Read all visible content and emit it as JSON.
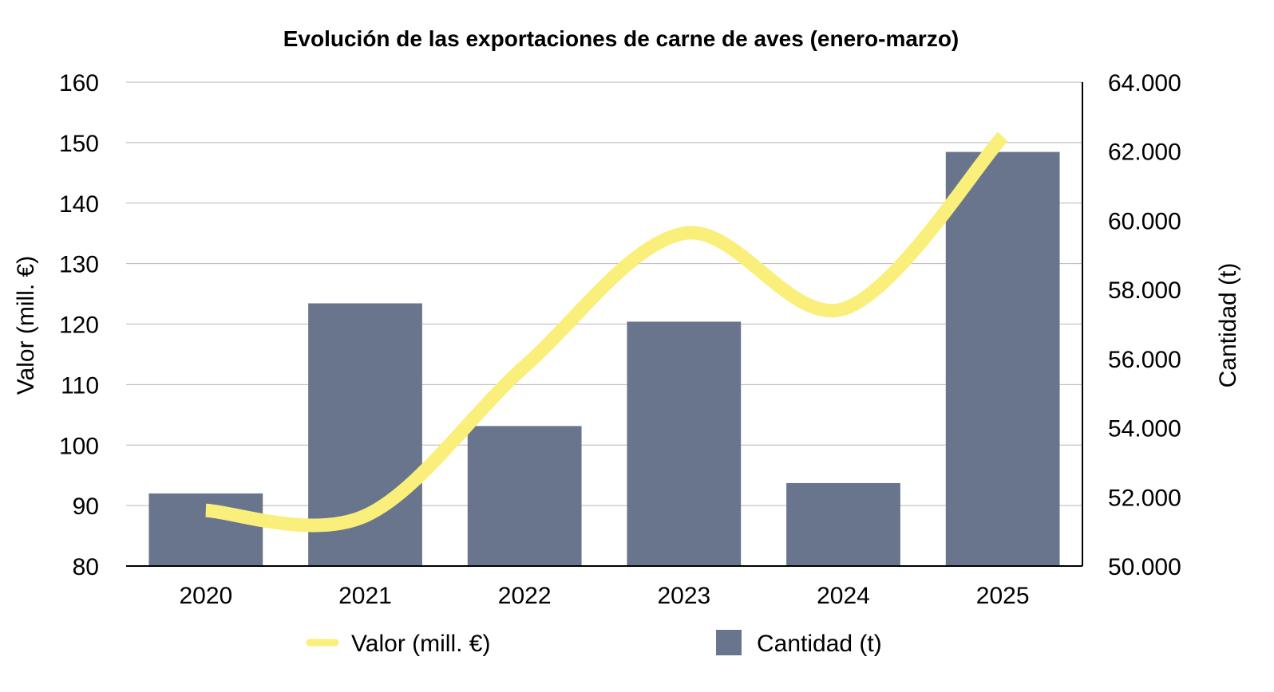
{
  "chart_data": {
    "type": "bar+line",
    "title": "Evolución de las exportaciones de carne de aves (enero-marzo)",
    "categories": [
      "2020",
      "2021",
      "2022",
      "2023",
      "2024",
      "2025"
    ],
    "series": [
      {
        "name": "Cantidad (t)",
        "type": "bar",
        "axis": "right",
        "color": "#68758c",
        "values": [
          52100,
          57600,
          54050,
          57070,
          52400,
          61980
        ]
      },
      {
        "name": "Valor (mill. €)",
        "type": "line",
        "axis": "left",
        "color": "#f9ef7a",
        "values": [
          89.2,
          88.3,
          113.0,
          135.0,
          122.5,
          151.0
        ]
      }
    ],
    "y_left": {
      "label": "Valor (mill. €)",
      "min": 80,
      "max": 160,
      "step": 10,
      "ticks": [
        "80",
        "90",
        "100",
        "110",
        "120",
        "130",
        "140",
        "150",
        "160"
      ]
    },
    "y_right": {
      "label": "Cantidad (t)",
      "min": 50000,
      "max": 64000,
      "step": 2000,
      "ticks": [
        "50.000",
        "52.000",
        "54.000",
        "56.000",
        "58.000",
        "60.000",
        "62.000",
        "64.000"
      ]
    },
    "grid": true,
    "legend": {
      "position": "bottom",
      "items": [
        "Valor (mill. €)",
        "Cantidad (t)"
      ]
    }
  }
}
